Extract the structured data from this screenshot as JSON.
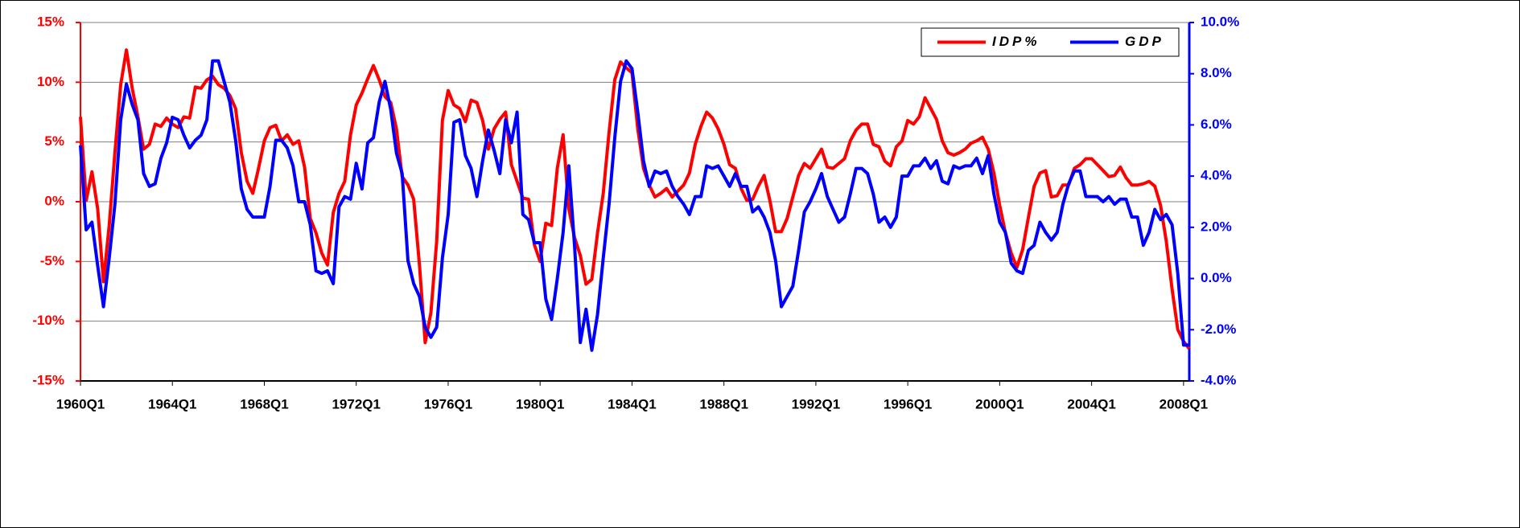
{
  "chart_data": {
    "type": "line",
    "categories": [
      "1960Q1",
      null,
      null,
      null,
      null,
      null,
      null,
      null,
      null,
      null,
      null,
      null,
      null,
      null,
      null,
      null,
      "1964Q1",
      null,
      null,
      null,
      null,
      null,
      null,
      null,
      null,
      null,
      null,
      null,
      null,
      null,
      null,
      null,
      "1968Q1",
      null,
      null,
      null,
      null,
      null,
      null,
      null,
      null,
      null,
      null,
      null,
      null,
      null,
      null,
      null,
      "1972Q1",
      null,
      null,
      null,
      null,
      null,
      null,
      null,
      null,
      null,
      null,
      null,
      null,
      null,
      null,
      null,
      "1976Q1",
      null,
      null,
      null,
      null,
      null,
      null,
      null,
      null,
      null,
      null,
      null,
      null,
      null,
      null,
      null,
      "1980Q1",
      null,
      null,
      null,
      null,
      null,
      null,
      null,
      null,
      null,
      null,
      null,
      null,
      null,
      null,
      null,
      "1984Q1",
      null,
      null,
      null,
      null,
      null,
      null,
      null,
      null,
      null,
      null,
      null,
      null,
      null,
      null,
      null,
      "1988Q1",
      null,
      null,
      null,
      null,
      null,
      null,
      null,
      null,
      null,
      null,
      null,
      null,
      null,
      null,
      null,
      "1992Q1",
      null,
      null,
      null,
      null,
      null,
      null,
      null,
      null,
      null,
      null,
      null,
      null,
      null,
      null,
      null,
      "1996Q1",
      null,
      null,
      null,
      null,
      null,
      null,
      null,
      null,
      null,
      null,
      null,
      null,
      null,
      null,
      null,
      "2000Q1",
      null,
      null,
      null,
      null,
      null,
      null,
      null,
      null,
      null,
      null,
      null,
      null,
      null,
      null,
      null,
      "2004Q1",
      null,
      null,
      null,
      null,
      null,
      null,
      null,
      null,
      null,
      null,
      null,
      null,
      null,
      null,
      null,
      "2008Q1",
      null
    ],
    "series": [
      {
        "name": "IDP%",
        "color": "#ff0000",
        "axis": "y",
        "values": [
          7.1,
          0.1,
          2.5,
          -0.6,
          -6.7,
          -2,
          4.1,
          9.8,
          12.7,
          9.5,
          7.1,
          4.4,
          4.8,
          6.5,
          6.3,
          7.0,
          6.5,
          6.2,
          7.1,
          7.0,
          9.6,
          9.5,
          10.2,
          10.5,
          9.8,
          9.5,
          8.9,
          7.8,
          4.1,
          1.7,
          0.7,
          2.8,
          5.1,
          6.2,
          6.4,
          5.1,
          5.6,
          4.8,
          5.1,
          2.9,
          -1.4,
          -2.6,
          -4.3,
          -5.3,
          -0.9,
          0.7,
          1.7,
          5.6,
          8.1,
          9.1,
          10.3,
          11.4,
          10.2,
          8.8,
          8.3,
          6.1,
          2.1,
          1.4,
          0.2,
          -5.3,
          -11.8,
          -9.3,
          -3.3,
          6.8,
          9.3,
          8.1,
          7.8,
          6.7,
          8.5,
          8.3,
          6.8,
          4.4,
          6.1,
          6.9,
          7.5,
          3.1,
          1.7,
          0.3,
          0.2,
          -3.6,
          -5.0,
          -1.8,
          -2.0,
          2.8,
          5.6,
          -0.6,
          -3.0,
          -4.5,
          -6.9,
          -6.5,
          -2.6,
          0.7,
          5.8,
          10.2,
          11.7,
          11.2,
          10.8,
          6.1,
          2.8,
          1.4,
          0.4,
          0.7,
          1.1,
          0.4,
          0.9,
          1.4,
          2.4,
          4.8,
          6.3,
          7.5,
          7.0,
          6.1,
          4.8,
          3.1,
          2.8,
          1.1,
          0.1,
          0.2,
          1.3,
          2.2,
          0.1,
          -2.5,
          -2.5,
          -1.4,
          0.4,
          2.2,
          3.2,
          2.8,
          3.6,
          4.4,
          2.9,
          2.8,
          3.2,
          3.6,
          5.1,
          6.0,
          6.5,
          6.5,
          4.8,
          4.6,
          3.4,
          3.0,
          4.6,
          5.1,
          6.8,
          6.5,
          7.1,
          8.7,
          7.8,
          6.9,
          5.1,
          4.1,
          3.9,
          4.1,
          4.4,
          4.9,
          5.1,
          5.4,
          4.4,
          2.4,
          -0.3,
          -2.6,
          -4.3,
          -5.5,
          -4.0,
          -1.3,
          1.3,
          2.4,
          2.6,
          0.4,
          0.5,
          1.4,
          1.4,
          2.8,
          3.1,
          3.6,
          3.6,
          3.1,
          2.6,
          2.1,
          2.2,
          2.9,
          2.0,
          1.4,
          1.4,
          1.5,
          1.7,
          1.3,
          -0.3,
          -3.3,
          -7.3,
          -10.7,
          -11.7,
          -12.3
        ]
      },
      {
        "name": "GDP",
        "color": "#0000ff",
        "axis": "y2",
        "values": [
          5.2,
          1.9,
          2.2,
          0.5,
          -1.1,
          0.8,
          2.9,
          6.2,
          7.6,
          6.8,
          6.2,
          4.1,
          3.6,
          3.7,
          4.7,
          5.3,
          6.3,
          6.2,
          5.6,
          5.1,
          5.4,
          5.6,
          6.2,
          8.5,
          8.5,
          7.7,
          6.9,
          5.4,
          3.5,
          2.7,
          2.4,
          2.4,
          2.4,
          3.6,
          5.4,
          5.4,
          5.1,
          4.4,
          3.0,
          3.0,
          2.1,
          0.3,
          0.2,
          0.3,
          -0.2,
          2.8,
          3.2,
          3.1,
          4.5,
          3.5,
          5.3,
          5.5,
          6.9,
          7.7,
          6.6,
          4.9,
          4.1,
          0.7,
          -0.2,
          -0.7,
          -1.9,
          -2.3,
          -1.9,
          0.8,
          2.5,
          6.1,
          6.2,
          4.8,
          4.3,
          3.2,
          4.6,
          5.8,
          5.0,
          4.1,
          6.2,
          5.3,
          6.5,
          2.5,
          2.3,
          1.4,
          1.4,
          -0.8,
          -1.6,
          0.0,
          1.8,
          4.4,
          1.3,
          -2.5,
          -1.2,
          -2.8,
          -1.4,
          0.8,
          2.9,
          5.5,
          7.7,
          8.5,
          8.2,
          6.5,
          4.6,
          3.6,
          4.2,
          4.1,
          4.2,
          3.6,
          3.2,
          2.9,
          2.5,
          3.2,
          3.2,
          4.4,
          4.3,
          4.4,
          4.0,
          3.6,
          4.1,
          3.6,
          3.6,
          2.6,
          2.8,
          2.4,
          1.8,
          0.7,
          -1.1,
          -0.7,
          -0.3,
          1.1,
          2.6,
          3.0,
          3.5,
          4.1,
          3.2,
          2.7,
          2.2,
          2.4,
          3.3,
          4.3,
          4.3,
          4.1,
          3.3,
          2.2,
          2.4,
          2.0,
          2.4,
          4.0,
          4.0,
          4.4,
          4.4,
          4.7,
          4.3,
          4.6,
          3.8,
          3.7,
          4.4,
          4.3,
          4.4,
          4.4,
          4.7,
          4.1,
          4.8,
          3.3,
          2.2,
          1.8,
          0.6,
          0.3,
          0.2,
          1.1,
          1.3,
          2.2,
          1.8,
          1.5,
          1.8,
          2.9,
          3.7,
          4.2,
          4.2,
          3.2,
          3.2,
          3.2,
          3.0,
          3.2,
          2.9,
          3.1,
          3.1,
          2.4,
          2.4,
          1.3,
          1.8,
          2.7,
          2.3,
          2.5,
          2.1,
          0.2,
          -2.6,
          -2.6
        ]
      }
    ],
    "ylim": [
      -15,
      15
    ],
    "yticks": [
      {
        "value": -15,
        "label": "-15%"
      },
      {
        "value": -10,
        "label": "-10%"
      },
      {
        "value": -5,
        "label": "-5%"
      },
      {
        "value": 0,
        "label": "0%"
      },
      {
        "value": 5,
        "label": "5%"
      },
      {
        "value": 10,
        "label": "10%"
      },
      {
        "value": 15,
        "label": "15%"
      }
    ],
    "y2lim": [
      -4,
      10
    ],
    "y2ticks": [
      {
        "value": -4,
        "label": "-4.0%"
      },
      {
        "value": -2,
        "label": "-2.0%"
      },
      {
        "value": 0,
        "label": "0.0%"
      },
      {
        "value": 2,
        "label": "2.0%"
      },
      {
        "value": 4,
        "label": "4.0%"
      },
      {
        "value": 6,
        "label": "6.0%"
      },
      {
        "value": 8,
        "label": "8.0%"
      },
      {
        "value": 10,
        "label": "10.0%"
      }
    ],
    "grid": true,
    "legend": "upper right"
  }
}
